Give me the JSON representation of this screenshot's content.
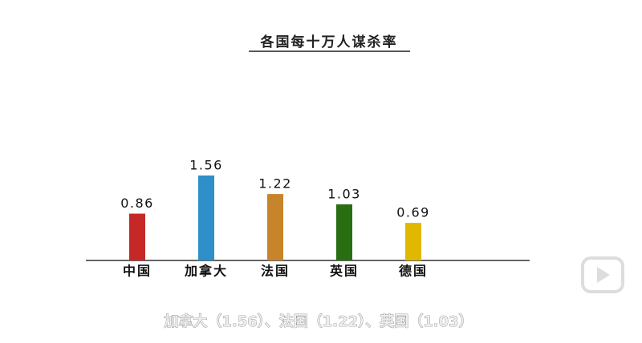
{
  "chart_data": {
    "type": "bar",
    "title": "各国每十万人谋杀率",
    "categories": [
      "中国",
      "加拿大",
      "法国",
      "英国",
      "德国"
    ],
    "values": [
      0.86,
      1.56,
      1.22,
      1.03,
      0.69
    ],
    "colors": [
      "#c62828",
      "#2e8fc9",
      "#c8842a",
      "#2a6e12",
      "#e0b800"
    ],
    "caption": "加拿大（1.56）、法国（1.22）、英国（1.03）"
  }
}
